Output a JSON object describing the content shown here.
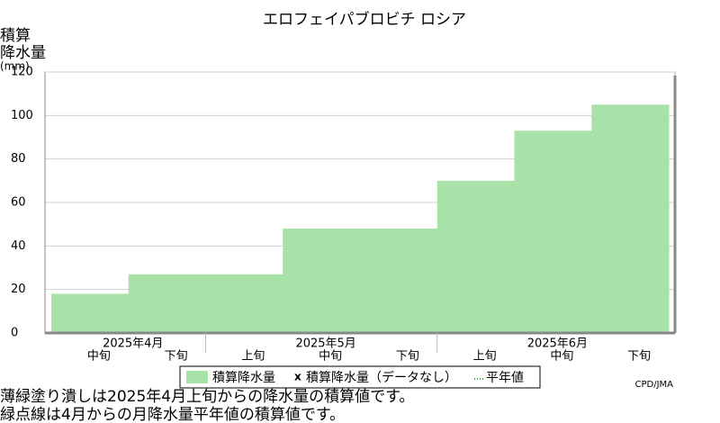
{
  "chart_data": {
    "type": "area",
    "title": "エロフェイパブロビチ ロシア",
    "ylabel": [
      "積算",
      "降水量",
      "(mm)"
    ],
    "months": [
      "2025年4月",
      "2025年5月",
      "2025年6月"
    ],
    "categories": [
      "中旬",
      "下旬",
      "上旬",
      "中旬",
      "下旬",
      "上旬",
      "中旬",
      "下旬"
    ],
    "series": [
      {
        "name": "積算降水量",
        "color": "#a8e2a8",
        "values": [
          18,
          27,
          27,
          48,
          48,
          70,
          93,
          105
        ]
      }
    ],
    "legend_items": [
      "積算降水量（データなし）",
      "平年値"
    ],
    "ylim": [
      0,
      120
    ],
    "yticks": [
      0,
      20,
      40,
      60,
      80,
      100,
      120
    ],
    "grid": true,
    "notes": [
      "薄緑塗り潰しは2025年4月上旬からの降水量の積算値です。",
      "緑点線は4月からの月降水量平年値の積算値です。"
    ],
    "credit": "CPD/JMA"
  }
}
